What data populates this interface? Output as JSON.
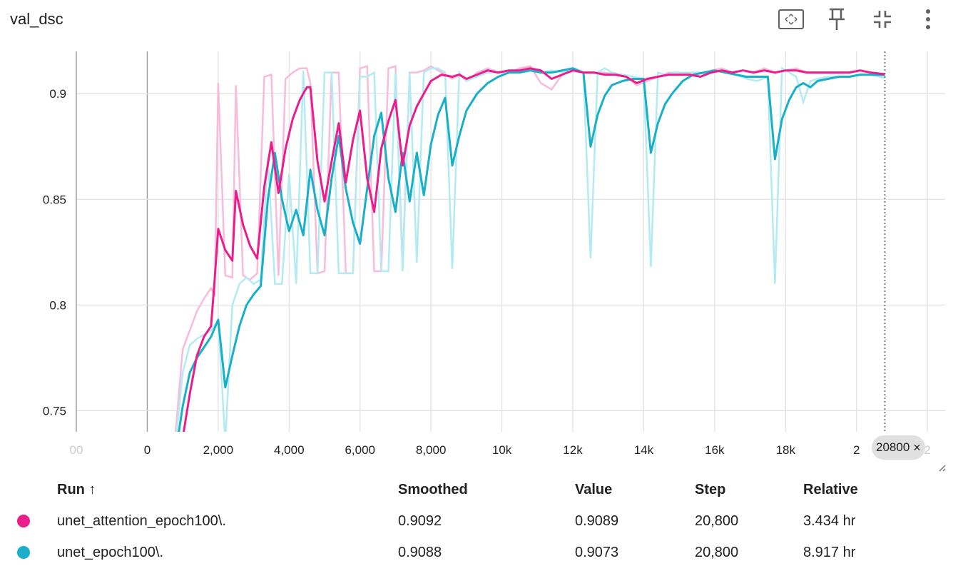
{
  "header": {
    "title": "val_dsc",
    "icons": [
      "fit-domain-icon",
      "pin-icon",
      "collapse-icon",
      "more-vert-icon"
    ]
  },
  "chart_data": {
    "type": "line",
    "title": "val_dsc",
    "xlabel": "",
    "ylabel": "",
    "xlim": [
      -2000,
      22500
    ],
    "ylim": [
      0.74,
      0.92
    ],
    "x_tick_labels": [
      "00",
      "0",
      "2,000",
      "4,000",
      "6,000",
      "8,000",
      "10k",
      "12k",
      "14k",
      "16k",
      "18k",
      "2",
      "2"
    ],
    "y_tick_labels": [
      "0.75",
      "0.8",
      "0.85",
      "0.9"
    ],
    "y_ticks": [
      0.75,
      0.8,
      0.85,
      0.9
    ],
    "grid": true,
    "hover_step": 20800,
    "hover_label": "20800",
    "series": [
      {
        "name": "unet_attention_epoch100\\.",
        "color": "#e91e8c",
        "raw_color": "#f8bbd9",
        "x": [
          800,
          1000,
          1200,
          1400,
          1600,
          1800,
          1900,
          2000,
          2200,
          2400,
          2500,
          2700,
          2900,
          3100,
          3300,
          3500,
          3700,
          3900,
          4100,
          4300,
          4500,
          4600,
          4800,
          5000,
          5200,
          5400,
          5600,
          5800,
          6000,
          6200,
          6400,
          6600,
          6800,
          7000,
          7200,
          7400,
          7600,
          7800,
          8000,
          8300,
          8600,
          8800,
          9000,
          9300,
          9600,
          9900,
          10200,
          10500,
          10800,
          11100,
          11400,
          11700,
          12000,
          12300,
          12600,
          12900,
          13200,
          13500,
          13800,
          14100,
          14400,
          14700,
          15000,
          15300,
          15600,
          15900,
          16200,
          16500,
          16800,
          17100,
          17400,
          17700,
          18000,
          18300,
          18600,
          18900,
          19200,
          19500,
          19800,
          20100,
          20400,
          20800
        ],
        "smoothed": [
          0.735,
          0.737,
          0.758,
          0.776,
          0.785,
          0.79,
          0.812,
          0.836,
          0.826,
          0.821,
          0.854,
          0.838,
          0.828,
          0.822,
          0.856,
          0.877,
          0.853,
          0.874,
          0.888,
          0.897,
          0.903,
          0.903,
          0.868,
          0.849,
          0.868,
          0.886,
          0.858,
          0.878,
          0.892,
          0.86,
          0.844,
          0.874,
          0.887,
          0.897,
          0.866,
          0.885,
          0.894,
          0.9,
          0.906,
          0.909,
          0.908,
          0.909,
          0.907,
          0.909,
          0.911,
          0.91,
          0.911,
          0.911,
          0.912,
          0.911,
          0.907,
          0.909,
          0.911,
          0.91,
          0.91,
          0.909,
          0.909,
          0.908,
          0.905,
          0.907,
          0.908,
          0.909,
          0.909,
          0.909,
          0.908,
          0.91,
          0.911,
          0.91,
          0.911,
          0.91,
          0.911,
          0.91,
          0.911,
          0.911,
          0.91,
          0.91,
          0.91,
          0.91,
          0.91,
          0.911,
          0.91,
          0.9092
        ],
        "raw": [
          0.74,
          0.779,
          0.788,
          0.797,
          0.803,
          0.808,
          0.805,
          0.905,
          0.814,
          0.813,
          0.904,
          0.814,
          0.812,
          0.815,
          0.908,
          0.909,
          0.814,
          0.907,
          0.91,
          0.912,
          0.912,
          0.905,
          0.815,
          0.816,
          0.91,
          0.91,
          0.815,
          0.815,
          0.912,
          0.913,
          0.816,
          0.816,
          0.912,
          0.913,
          0.82,
          0.91,
          0.91,
          0.911,
          0.913,
          0.91,
          0.907,
          0.909,
          0.906,
          0.91,
          0.912,
          0.91,
          0.91,
          0.912,
          0.913,
          0.905,
          0.902,
          0.909,
          0.912,
          0.91,
          0.91,
          0.91,
          0.909,
          0.908,
          0.904,
          0.906,
          0.908,
          0.91,
          0.91,
          0.909,
          0.908,
          0.911,
          0.912,
          0.91,
          0.911,
          0.91,
          0.912,
          0.91,
          0.911,
          0.912,
          0.91,
          0.91,
          0.91,
          0.91,
          0.91,
          0.911,
          0.91,
          0.9089
        ]
      },
      {
        "name": "unet_epoch100\\.",
        "color": "#1aafc8",
        "raw_color": "#b2ebf2",
        "x": [
          800,
          1000,
          1200,
          1400,
          1600,
          1800,
          2000,
          2200,
          2400,
          2600,
          2800,
          3000,
          3200,
          3400,
          3600,
          3800,
          4000,
          4200,
          4400,
          4600,
          4800,
          5000,
          5200,
          5400,
          5600,
          5800,
          6000,
          6200,
          6400,
          6600,
          6800,
          7000,
          7200,
          7400,
          7600,
          7800,
          8000,
          8200,
          8400,
          8600,
          8800,
          9000,
          9300,
          9600,
          9900,
          10200,
          10500,
          10800,
          11100,
          11400,
          11700,
          12000,
          12300,
          12500,
          12700,
          12900,
          13100,
          13400,
          13700,
          14000,
          14200,
          14400,
          14600,
          14800,
          15100,
          15400,
          15700,
          16000,
          16300,
          16600,
          16900,
          17200,
          17500,
          17700,
          17900,
          18100,
          18300,
          18500,
          18700,
          18900,
          19200,
          19500,
          19800,
          20100,
          20400,
          20800
        ],
        "smoothed": [
          0.73,
          0.752,
          0.768,
          0.775,
          0.78,
          0.785,
          0.793,
          0.761,
          0.776,
          0.79,
          0.8,
          0.805,
          0.809,
          0.85,
          0.872,
          0.85,
          0.835,
          0.845,
          0.833,
          0.864,
          0.845,
          0.833,
          0.86,
          0.88,
          0.855,
          0.839,
          0.829,
          0.855,
          0.88,
          0.891,
          0.86,
          0.844,
          0.872,
          0.849,
          0.872,
          0.852,
          0.876,
          0.89,
          0.898,
          0.866,
          0.88,
          0.892,
          0.9,
          0.905,
          0.908,
          0.91,
          0.91,
          0.911,
          0.91,
          0.91,
          0.911,
          0.912,
          0.91,
          0.875,
          0.89,
          0.899,
          0.904,
          0.906,
          0.907,
          0.907,
          0.872,
          0.886,
          0.895,
          0.9,
          0.906,
          0.909,
          0.91,
          0.911,
          0.91,
          0.909,
          0.908,
          0.908,
          0.908,
          0.869,
          0.888,
          0.897,
          0.903,
          0.905,
          0.903,
          0.906,
          0.907,
          0.908,
          0.908,
          0.909,
          0.909,
          0.9088
        ],
        "raw": [
          0.735,
          0.768,
          0.781,
          0.784,
          0.786,
          0.788,
          0.793,
          0.735,
          0.8,
          0.81,
          0.813,
          0.81,
          0.812,
          0.87,
          0.81,
          0.81,
          0.862,
          0.81,
          0.911,
          0.815,
          0.815,
          0.91,
          0.91,
          0.815,
          0.815,
          0.815,
          0.908,
          0.908,
          0.91,
          0.816,
          0.816,
          0.91,
          0.816,
          0.91,
          0.82,
          0.91,
          0.912,
          0.912,
          0.91,
          0.817,
          0.91,
          0.906,
          0.908,
          0.91,
          0.91,
          0.91,
          0.91,
          0.911,
          0.91,
          0.911,
          0.91,
          0.912,
          0.91,
          0.822,
          0.91,
          0.912,
          0.91,
          0.909,
          0.908,
          0.907,
          0.818,
          0.91,
          0.909,
          0.91,
          0.91,
          0.91,
          0.91,
          0.911,
          0.91,
          0.909,
          0.907,
          0.906,
          0.908,
          0.81,
          0.912,
          0.91,
          0.908,
          0.896,
          0.906,
          0.907,
          0.908,
          0.908,
          0.908,
          0.909,
          0.909,
          0.9073
        ]
      }
    ]
  },
  "table": {
    "headers": {
      "run": "Run ↑",
      "smoothed": "Smoothed",
      "value": "Value",
      "step": "Step",
      "relative": "Relative"
    },
    "rows": [
      {
        "color": "#e91e8c",
        "run": "unet_attention_epoch100\\.",
        "smoothed": "0.9092",
        "value": "0.9089",
        "step": "20,800",
        "relative": "3.434 hr"
      },
      {
        "color": "#1aafc8",
        "run": "unet_epoch100\\.",
        "smoothed": "0.9088",
        "value": "0.9073",
        "step": "20,800",
        "relative": "8.917 hr"
      }
    ]
  }
}
